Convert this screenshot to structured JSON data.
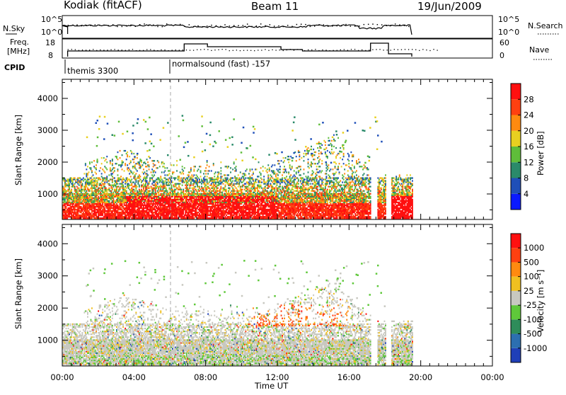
{
  "header": {
    "station": "Kodiak (fitACF)",
    "beam": "Beam 11",
    "date": "19/Jun/2009"
  },
  "params_panel": {
    "nsky_label": "N.Sky",
    "nsky_ticks": [
      "10^5",
      "10^0"
    ],
    "nsearch_ticks": [
      "10^5",
      "10^0"
    ],
    "nsearch_label": "N.Search",
    "freq_label_line1": "Freq.",
    "freq_label_line2": "[MHz]",
    "freq_ticks": [
      "18",
      "8"
    ],
    "nave_ticks": [
      "60",
      "0"
    ],
    "nave_label": "Nave",
    "cpid_label": "CPID",
    "cpid_segments": [
      "themis 3300",
      "normalsound (fast) -157"
    ]
  },
  "chart_data": [
    {
      "type": "heatmap",
      "name": "power",
      "ylabel": "Slant Range [km]",
      "yticks": [
        "1000",
        "2000",
        "3000",
        "4000"
      ],
      "ylim": [
        200,
        4600
      ],
      "xlim": [
        0,
        24
      ],
      "colorbar_label": "Power [dB]",
      "colorbar_ticks": [
        "28",
        "24",
        "20",
        "16",
        "12",
        "8",
        "4"
      ],
      "colorbar_colors": [
        "#0a1aff",
        "#1f4fb8",
        "#2a8a6a",
        "#5fbd3a",
        "#e8d020",
        "#ff8a10",
        "#ff4010",
        "#ff1010"
      ],
      "data_end_hours": 19.5
    },
    {
      "type": "heatmap",
      "name": "velocity",
      "ylabel": "Slant Range [km]",
      "yticks": [
        "1000",
        "2000",
        "3000",
        "4000"
      ],
      "ylim": [
        200,
        4600
      ],
      "xlim": [
        0,
        24
      ],
      "xlabel": "Time UT",
      "xticks": [
        "00:00",
        "04:00",
        "08:00",
        "12:00",
        "16:00",
        "20:00",
        "00:00"
      ],
      "colorbar_label": "Velocity [m s⁻¹]",
      "colorbar_ticks": [
        "1000",
        "500",
        "100",
        "25",
        "-25",
        "-100",
        "-500",
        "-1000"
      ],
      "colorbar_colors": [
        "#1f3fb8",
        "#2c6fb0",
        "#2e8c5a",
        "#5fc83a",
        "#c8c8c0",
        "#f0c020",
        "#ff8a10",
        "#ff4010",
        "#ff1010"
      ],
      "data_end_hours": 19.5
    }
  ]
}
